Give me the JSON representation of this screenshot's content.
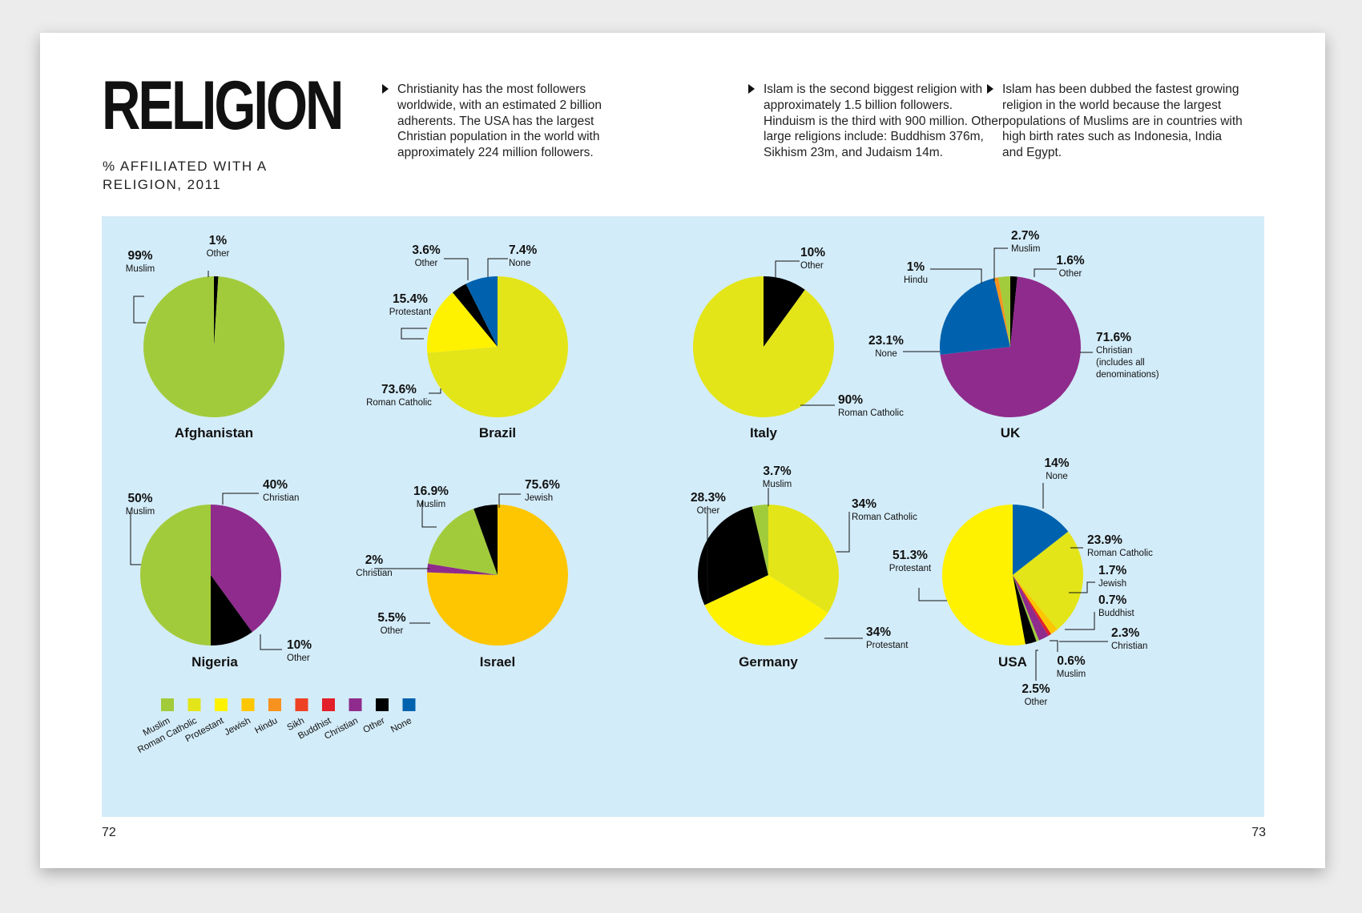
{
  "header": {
    "title": "RELIGION",
    "subtitle": "% AFFILIATED WITH A RELIGION, 2011"
  },
  "notes": [
    "Christianity has the most followers worldwide, with an estimated 2 billion adherents. The USA has the largest Christian population in the world with approximately 224 million followers.",
    "Islam is the second biggest religion with approximately 1.5 billion followers. Hinduism is the third with 900 million. Other large religions include: Buddhism 376m, Sikhism 23m, and Judaism 14m.",
    "Islam has been dubbed the fastest growing religion in the world because the largest populations of Muslims are in countries with high birth rates such as Indonesia, India and Egypt."
  ],
  "page_numbers": {
    "left": "72",
    "right": "73"
  },
  "colors": {
    "Muslim": "#a2cb3b",
    "Roman Catholic": "#e3e519",
    "Protestant": "#fff200",
    "Jewish": "#fdc600",
    "Hindu": "#f7921e",
    "Sikh": "#ee4124",
    "Buddhist": "#e21f2a",
    "Christian": "#8f2b8c",
    "Other": "#000000",
    "None": "#0062ae"
  },
  "legend": [
    "Muslim",
    "Roman Catholic",
    "Protestant",
    "Jewish",
    "Hindu",
    "Sikh",
    "Buddhist",
    "Christian",
    "Other",
    "None"
  ],
  "chart_data": [
    {
      "type": "pie",
      "title": "Afghanistan",
      "slices": [
        {
          "label": "Other",
          "value": 1,
          "value_label": "1%",
          "color_key": "Other"
        },
        {
          "label": "Muslim",
          "value": 99,
          "value_label": "99%",
          "color_key": "Muslim"
        }
      ]
    },
    {
      "type": "pie",
      "title": "Brazil",
      "slices": [
        {
          "label": "Roman Catholic",
          "value": 73.6,
          "value_label": "73.6%",
          "color_key": "Roman Catholic"
        },
        {
          "label": "Protestant",
          "value": 15.4,
          "value_label": "15.4%",
          "color_key": "Protestant"
        },
        {
          "label": "Other",
          "value": 3.6,
          "value_label": "3.6%",
          "color_key": "Other"
        },
        {
          "label": "None",
          "value": 7.4,
          "value_label": "7.4%",
          "color_key": "None"
        }
      ]
    },
    {
      "type": "pie",
      "title": "Italy",
      "slices": [
        {
          "label": "Other",
          "value": 10,
          "value_label": "10%",
          "color_key": "Other"
        },
        {
          "label": "Roman Catholic",
          "value": 90,
          "value_label": "90%",
          "color_key": "Roman Catholic"
        }
      ]
    },
    {
      "type": "pie",
      "title": "UK",
      "slices": [
        {
          "label": "Other",
          "value": 1.6,
          "value_label": "1.6%",
          "color_key": "Other"
        },
        {
          "label": "Christian (includes all denominations)",
          "value": 71.6,
          "value_label": "71.6%",
          "color_key": "Christian"
        },
        {
          "label": "None",
          "value": 23.1,
          "value_label": "23.1%",
          "color_key": "None"
        },
        {
          "label": "Hindu",
          "value": 1,
          "value_label": "1%",
          "color_key": "Hindu"
        },
        {
          "label": "Muslim",
          "value": 2.7,
          "value_label": "2.7%",
          "color_key": "Muslim"
        }
      ]
    },
    {
      "type": "pie",
      "title": "Nigeria",
      "slices": [
        {
          "label": "Christian",
          "value": 40,
          "value_label": "40%",
          "color_key": "Christian"
        },
        {
          "label": "Other",
          "value": 10,
          "value_label": "10%",
          "color_key": "Other"
        },
        {
          "label": "Muslim",
          "value": 50,
          "value_label": "50%",
          "color_key": "Muslim"
        }
      ]
    },
    {
      "type": "pie",
      "title": "Israel",
      "slices": [
        {
          "label": "Jewish",
          "value": 75.6,
          "value_label": "75.6%",
          "color_key": "Jewish"
        },
        {
          "label": "Christian",
          "value": 2,
          "value_label": "2%",
          "color_key": "Christian"
        },
        {
          "label": "Muslim",
          "value": 16.9,
          "value_label": "16.9%",
          "color_key": "Muslim"
        },
        {
          "label": "Other",
          "value": 5.5,
          "value_label": "5.5%",
          "color_key": "Other"
        }
      ]
    },
    {
      "type": "pie",
      "title": "Germany",
      "slices": [
        {
          "label": "Roman Catholic",
          "value": 34,
          "value_label": "34%",
          "color_key": "Roman Catholic"
        },
        {
          "label": "Protestant",
          "value": 34,
          "value_label": "34%",
          "color_key": "Protestant"
        },
        {
          "label": "Other",
          "value": 28.3,
          "value_label": "28.3%",
          "color_key": "Other"
        },
        {
          "label": "Muslim",
          "value": 3.7,
          "value_label": "3.7%",
          "color_key": "Muslim"
        }
      ]
    },
    {
      "type": "pie",
      "title": "USA",
      "slices": [
        {
          "label": "None",
          "value": 14,
          "value_label": "14%",
          "color_key": "None"
        },
        {
          "label": "Roman Catholic",
          "value": 23.9,
          "value_label": "23.9%",
          "color_key": "Roman Catholic"
        },
        {
          "label": "Jewish",
          "value": 1.7,
          "value_label": "1.7%",
          "color_key": "Jewish"
        },
        {
          "label": "Buddhist",
          "value": 0.7,
          "value_label": "0.7%",
          "color_key": "Buddhist"
        },
        {
          "label": "Christian",
          "value": 2.3,
          "value_label": "2.3%",
          "color_key": "Christian"
        },
        {
          "label": "Muslim",
          "value": 0.6,
          "value_label": "0.6%",
          "color_key": "Muslim"
        },
        {
          "label": "Other",
          "value": 2.5,
          "value_label": "2.5%",
          "color_key": "Other"
        },
        {
          "label": "Protestant",
          "value": 51.3,
          "value_label": "51.3%",
          "color_key": "Protestant"
        }
      ]
    }
  ]
}
